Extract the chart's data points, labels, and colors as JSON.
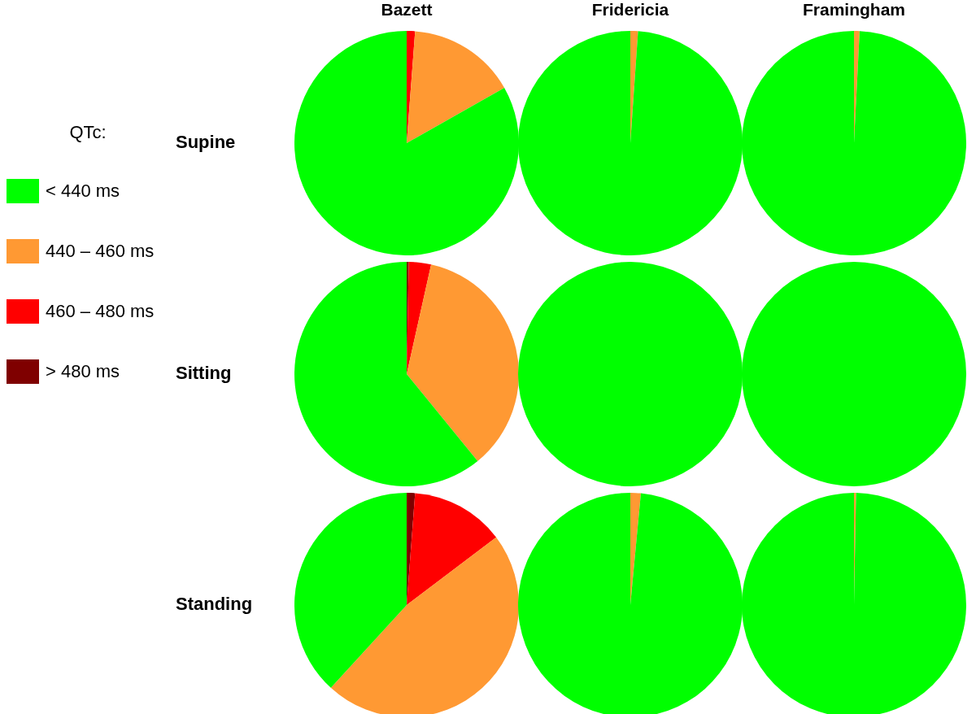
{
  "chart_data": [
    {
      "type": "pie",
      "title": "Bazett",
      "ylabel": "Supine",
      "legend_title": "QTc:",
      "legend": "left",
      "categories": [
        "> 480 ms",
        "460 – 480 ms",
        "440 – 460 ms",
        "< 440 ms"
      ],
      "colors": [
        "#7f0000",
        "#ff0000",
        "#ff9933",
        "#00ff00"
      ],
      "values": [
        0,
        1.2,
        15.6,
        83.2
      ]
    },
    {
      "type": "pie",
      "title": "Fridericia",
      "categories": [
        null,
        null,
        null,
        null
      ],
      "colors": [
        "#7f0000",
        "#ff0000",
        "#ff9933",
        "#00ff00"
      ],
      "values": [
        0,
        0,
        1.1,
        98.9
      ]
    },
    {
      "type": "pie",
      "title": "Framingham",
      "categories": [
        null,
        null,
        null,
        null
      ],
      "colors": [
        "#7f0000",
        "#ff0000",
        "#ff9933",
        "#00ff00"
      ],
      "values": [
        0,
        0,
        0.8,
        99.2
      ]
    },
    {
      "type": "pie",
      "ylabel": "Sitting",
      "categories": [
        null,
        null,
        null,
        null
      ],
      "colors": [
        "#7f0000",
        "#ff0000",
        "#ff9933",
        "#00ff00"
      ],
      "values": [
        0.3,
        3.2,
        35.6,
        60.9
      ]
    },
    {
      "type": "pie",
      "categories": [
        null,
        null,
        null,
        null
      ],
      "colors": [
        "#7f0000",
        "#ff0000",
        "#ff9933",
        "#00ff00"
      ],
      "values": [
        0,
        0,
        0,
        100
      ]
    },
    {
      "type": "pie",
      "categories": [
        null,
        null,
        null,
        null
      ],
      "colors": [
        "#7f0000",
        "#ff0000",
        "#ff9933",
        "#00ff00"
      ],
      "values": [
        0,
        0,
        0,
        100
      ]
    },
    {
      "type": "pie",
      "ylabel": "Standing",
      "categories": [
        null,
        null,
        null,
        null
      ],
      "colors": [
        "#7f0000",
        "#ff0000",
        "#ff9933",
        "#00ff00"
      ],
      "values": [
        1.2,
        13.5,
        47.1,
        38.2
      ]
    },
    {
      "type": "pie",
      "categories": [
        null,
        null,
        null,
        null
      ],
      "colors": [
        "#7f0000",
        "#ff0000",
        "#ff9933",
        "#00ff00"
      ],
      "values": [
        0,
        0,
        1.5,
        98.5
      ]
    },
    {
      "type": "pie",
      "categories": [
        null,
        null,
        null,
        null
      ],
      "colors": [
        "#7f0000",
        "#ff0000",
        "#ff9933",
        "#00ff00"
      ],
      "values": [
        0,
        0,
        0.3,
        99.7
      ]
    }
  ]
}
